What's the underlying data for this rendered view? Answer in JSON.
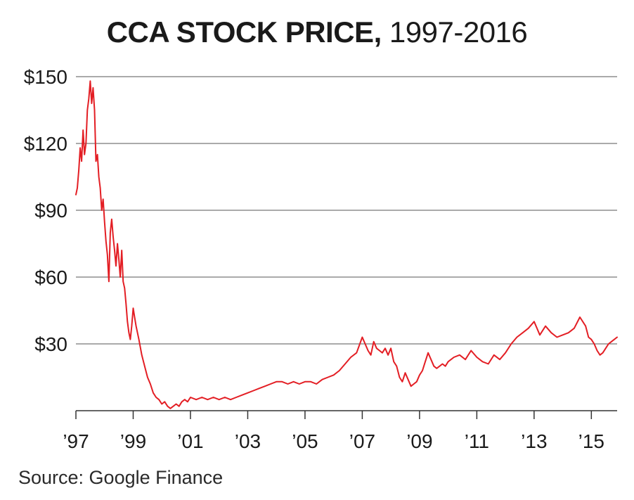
{
  "chart_data": {
    "type": "line",
    "title_bold": "CCA STOCK PRICE,",
    "title_rest": "1997-2016",
    "source": "Source: Google Finance",
    "color": "#e31e24",
    "grid": true,
    "x_range": [
      1997.0,
      2015.9
    ],
    "y_range": [
      0,
      150
    ],
    "y_ticks": [
      {
        "value": 150,
        "label": "$150"
      },
      {
        "value": 120,
        "label": "$120"
      },
      {
        "value": 90,
        "label": "$90"
      },
      {
        "value": 60,
        "label": "$60"
      },
      {
        "value": 30,
        "label": "$30"
      }
    ],
    "x_ticks": [
      {
        "value": 1997,
        "label": "’97"
      },
      {
        "value": 1999,
        "label": "’99"
      },
      {
        "value": 2001,
        "label": "’01"
      },
      {
        "value": 2003,
        "label": "’03"
      },
      {
        "value": 2005,
        "label": "’05"
      },
      {
        "value": 2007,
        "label": "’07"
      },
      {
        "value": 2009,
        "label": "’09"
      },
      {
        "value": 2011,
        "label": "’11"
      },
      {
        "value": 2013,
        "label": "’13"
      },
      {
        "value": 2015,
        "label": "’15"
      }
    ],
    "series": [
      {
        "x": [
          1997.0,
          1997.05,
          1997.1,
          1997.15,
          1997.2,
          1997.25,
          1997.3,
          1997.35,
          1997.4,
          1997.45,
          1997.5,
          1997.55,
          1997.6,
          1997.65,
          1997.7,
          1997.75,
          1997.8,
          1997.85,
          1997.9,
          1997.95,
          1998.0,
          1998.05,
          1998.1,
          1998.15,
          1998.2,
          1998.25,
          1998.3,
          1998.35,
          1998.4,
          1998.45,
          1998.5,
          1998.55,
          1998.6,
          1998.65,
          1998.7,
          1998.75,
          1998.8,
          1998.85,
          1998.9,
          1998.95,
          1999.0,
          1999.05,
          1999.1,
          1999.2,
          1999.3,
          1999.4,
          1999.5,
          1999.6,
          1999.7,
          1999.8,
          1999.9,
          2000.0,
          2000.1,
          2000.2,
          2000.3,
          2000.4,
          2000.5,
          2000.6,
          2000.7,
          2000.8,
          2000.9,
          2001.0,
          2001.2,
          2001.4,
          2001.6,
          2001.8,
          2002.0,
          2002.2,
          2002.4,
          2002.6,
          2002.8,
          2003.0,
          2003.2,
          2003.4,
          2003.6,
          2003.8,
          2004.0,
          2004.2,
          2004.4,
          2004.6,
          2004.8,
          2005.0,
          2005.2,
          2005.4,
          2005.6,
          2005.8,
          2006.0,
          2006.2,
          2006.4,
          2006.6,
          2006.8,
          2007.0,
          2007.1,
          2007.2,
          2007.3,
          2007.4,
          2007.5,
          2007.6,
          2007.7,
          2007.8,
          2007.9,
          2008.0,
          2008.1,
          2008.2,
          2008.3,
          2008.4,
          2008.5,
          2008.6,
          2008.7,
          2008.8,
          2008.9,
          2009.0,
          2009.1,
          2009.2,
          2009.3,
          2009.4,
          2009.5,
          2009.6,
          2009.7,
          2009.8,
          2009.9,
          2010.0,
          2010.2,
          2010.4,
          2010.6,
          2010.8,
          2011.0,
          2011.2,
          2011.4,
          2011.6,
          2011.8,
          2012.0,
          2012.2,
          2012.4,
          2012.6,
          2012.8,
          2013.0,
          2013.2,
          2013.4,
          2013.6,
          2013.8,
          2014.0,
          2014.2,
          2014.4,
          2014.6,
          2014.8,
          2014.9,
          2015.0,
          2015.1,
          2015.2,
          2015.3,
          2015.4,
          2015.5,
          2015.6,
          2015.7,
          2015.8,
          2015.9
        ],
        "y": [
          97,
          100,
          108,
          118,
          112,
          126,
          115,
          120,
          135,
          140,
          148,
          138,
          145,
          135,
          112,
          115,
          105,
          100,
          90,
          95,
          85,
          76,
          70,
          58,
          80,
          86,
          78,
          72,
          65,
          75,
          68,
          60,
          72,
          58,
          55,
          48,
          40,
          35,
          32,
          38,
          46,
          42,
          38,
          32,
          25,
          20,
          15,
          12,
          8,
          6,
          5,
          3,
          4,
          2,
          1,
          2,
          3,
          2,
          4,
          5,
          4,
          6,
          5,
          6,
          5,
          6,
          5,
          6,
          5,
          6,
          7,
          8,
          9,
          10,
          11,
          12,
          13,
          13,
          12,
          13,
          12,
          13,
          13,
          12,
          14,
          15,
          16,
          18,
          21,
          24,
          26,
          33,
          30,
          27,
          25,
          31,
          28,
          27,
          26,
          28,
          25,
          28,
          22,
          20,
          15,
          13,
          17,
          14,
          11,
          12,
          13,
          16,
          18,
          22,
          26,
          23,
          20,
          19,
          20,
          21,
          20,
          22,
          24,
          25,
          23,
          27,
          24,
          22,
          21,
          25,
          23,
          26,
          30,
          33,
          35,
          37,
          40,
          34,
          38,
          35,
          33,
          34,
          35,
          37,
          42,
          38,
          33,
          32,
          30,
          27,
          25,
          26,
          28,
          30,
          31,
          32,
          33
        ]
      }
    ]
  }
}
